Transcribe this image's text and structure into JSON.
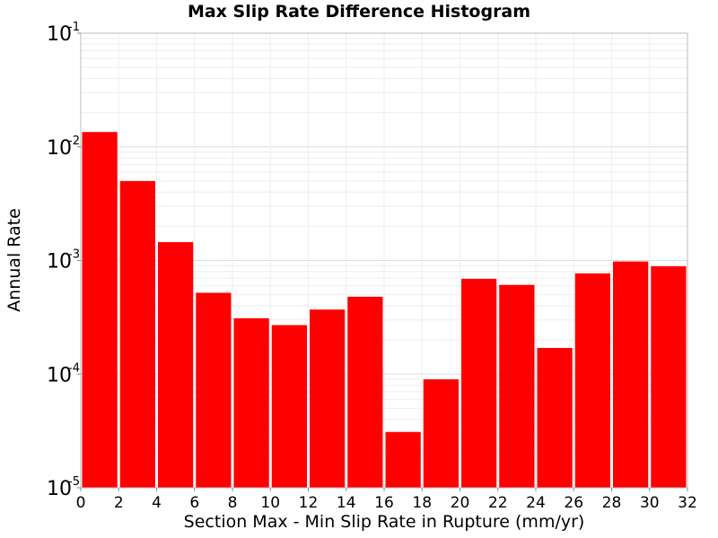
{
  "chart_data": {
    "type": "bar",
    "title": "Max Slip Rate Difference Histogram",
    "xlabel": "Section Max - Min Slip Rate in Rupture (mm/yr)",
    "ylabel": "Annual Rate",
    "y_scale": "log",
    "ylim": [
      1e-05,
      0.1
    ],
    "xlim": [
      0,
      32
    ],
    "grid": true,
    "bar_color": "#ff0000",
    "bin_width": 2,
    "x_ticks": [
      "0",
      "2",
      "4",
      "6",
      "8",
      "10",
      "12",
      "14",
      "16",
      "18",
      "20",
      "22",
      "24",
      "26",
      "28",
      "30",
      "32"
    ],
    "y_ticks": [
      {
        "base": "10",
        "exp": "-5",
        "value": 1e-05
      },
      {
        "base": "10",
        "exp": "-4",
        "value": 0.0001
      },
      {
        "base": "10",
        "exp": "-3",
        "value": 0.001
      },
      {
        "base": "10",
        "exp": "-2",
        "value": 0.01
      },
      {
        "base": "10",
        "exp": "-1",
        "value": 0.1
      }
    ],
    "bins": [
      {
        "x": 0,
        "value": 0.0135
      },
      {
        "x": 2,
        "value": 0.005
      },
      {
        "x": 4,
        "value": 0.00145
      },
      {
        "x": 6,
        "value": 0.00052
      },
      {
        "x": 8,
        "value": 0.00031
      },
      {
        "x": 10,
        "value": 0.00027
      },
      {
        "x": 12,
        "value": 0.00037
      },
      {
        "x": 14,
        "value": 0.00048
      },
      {
        "x": 16,
        "value": 3.1e-05
      },
      {
        "x": 18,
        "value": 9e-05
      },
      {
        "x": 20,
        "value": 0.00069
      },
      {
        "x": 22,
        "value": 0.00061
      },
      {
        "x": 24,
        "value": 0.00017
      },
      {
        "x": 26,
        "value": 0.00077
      },
      {
        "x": 28,
        "value": 0.00098
      },
      {
        "x": 30,
        "value": 0.00089
      }
    ]
  }
}
